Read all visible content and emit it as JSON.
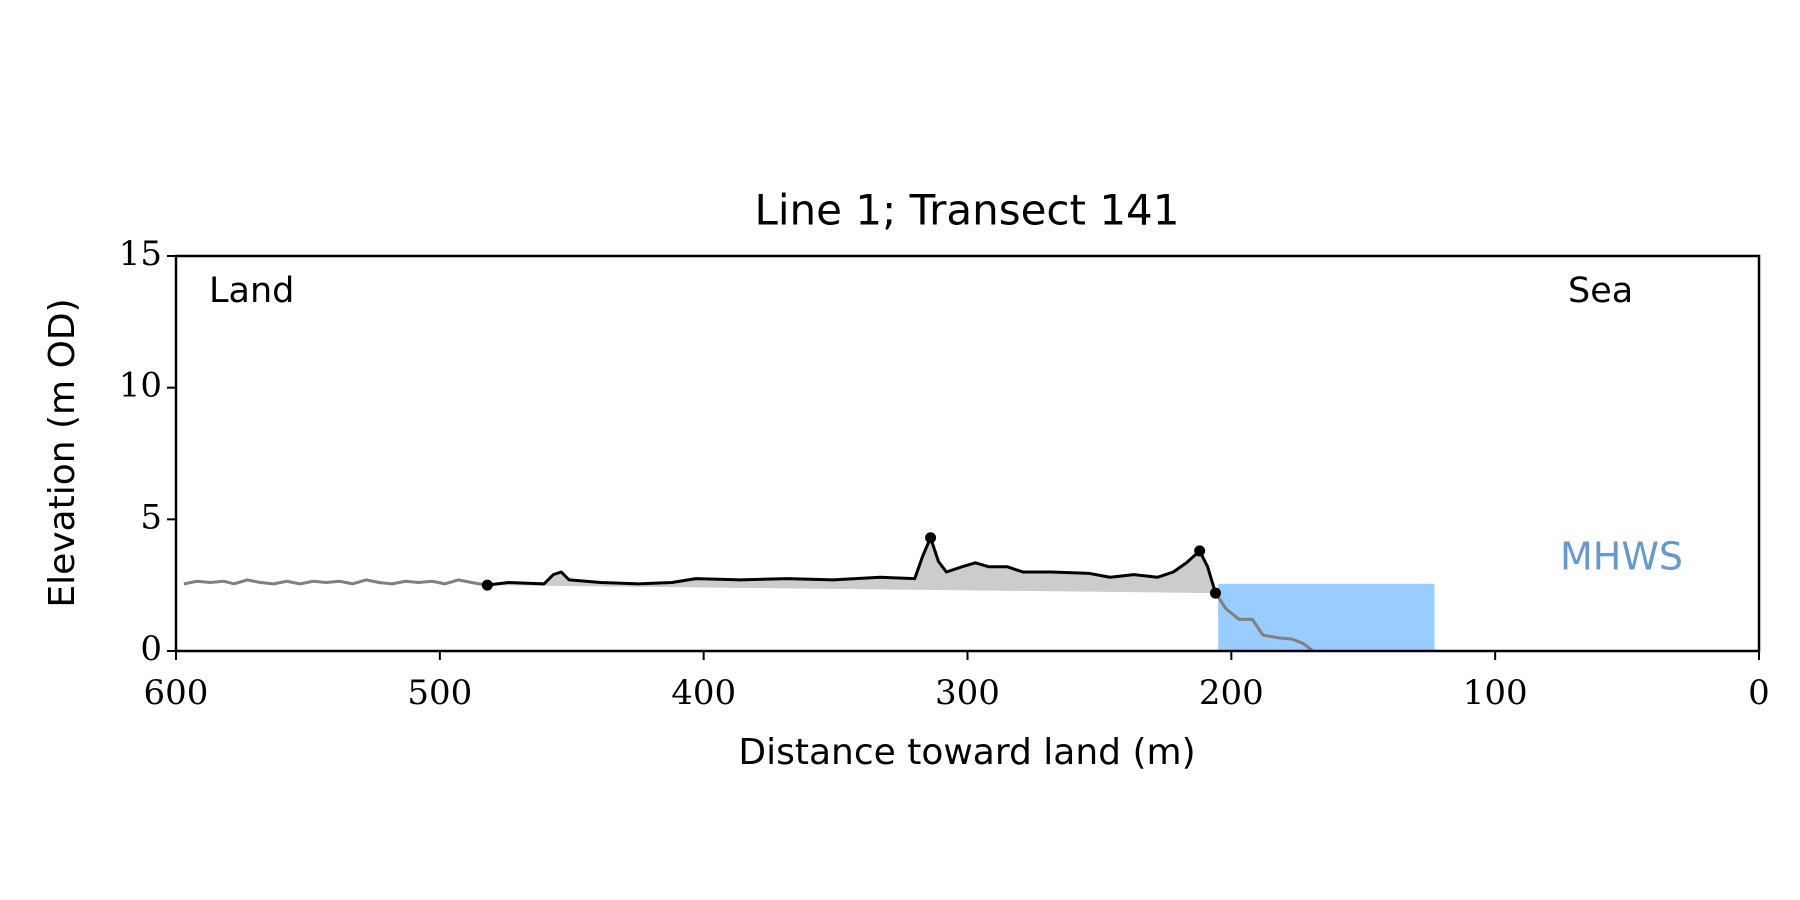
{
  "chart_data": {
    "type": "line",
    "title": "Line 1; Transect 141",
    "xlabel": "Distance toward land (m)",
    "ylabel": "Elevation (m OD)",
    "xlim": [
      600,
      0
    ],
    "ylim": [
      0,
      15
    ],
    "xticks": [
      600,
      500,
      400,
      300,
      200,
      100,
      0
    ],
    "yticks": [
      0,
      5,
      10,
      15
    ],
    "series": [
      {
        "color": "#808080",
        "x": [
          597,
          592,
          587,
          582,
          578,
          573,
          568,
          563,
          558,
          553,
          548,
          543,
          538,
          533,
          528,
          523,
          518,
          513,
          508,
          503,
          498,
          493,
          488,
          485,
          482,
          206,
          206,
          202,
          197,
          192,
          188,
          182,
          177,
          173,
          169
        ],
        "values": [
          2.55,
          2.65,
          2.6,
          2.65,
          2.55,
          2.7,
          2.6,
          2.55,
          2.65,
          2.55,
          2.65,
          2.6,
          2.65,
          2.55,
          2.7,
          2.6,
          2.55,
          2.65,
          2.6,
          2.65,
          2.55,
          2.7,
          2.6,
          2.55,
          2.5,
          null,
          2.2,
          1.6,
          1.2,
          1.2,
          0.6,
          0.5,
          0.45,
          0.3,
          0
        ]
      },
      {
        "color": "#000000",
        "x": [
          482,
          474,
          460.5,
          457,
          454,
          451,
          439,
          425,
          412,
          403,
          386,
          368,
          351,
          333,
          320,
          317,
          314,
          311,
          308,
          302,
          297,
          292,
          285,
          279,
          268,
          254,
          246,
          237,
          228,
          222,
          217,
          212,
          209,
          206
        ],
        "values": [
          2.5,
          2.6,
          2.55,
          2.9,
          3.0,
          2.7,
          2.6,
          2.55,
          2.6,
          2.75,
          2.7,
          2.75,
          2.7,
          2.8,
          2.75,
          3.6,
          4.3,
          3.4,
          3.0,
          3.2,
          3.35,
          3.2,
          3.2,
          3.0,
          3.0,
          2.95,
          2.8,
          2.9,
          2.8,
          3.0,
          3.35,
          3.8,
          3.2,
          2.2
        ]
      }
    ],
    "fill_color": "#cccccc",
    "markers": {
      "color": "#000000",
      "x": [
        482,
        314,
        212,
        206
      ],
      "values": [
        2.5,
        4.3,
        3.8,
        2.2
      ]
    },
    "mhws": {
      "level": 2.55,
      "x": [
        205,
        123
      ],
      "color": "#99ccff"
    },
    "annotations": [
      {
        "text": "Land"
      },
      {
        "text": "Sea"
      },
      {
        "text": "MHWS",
        "color": "#6699cc"
      }
    ]
  }
}
